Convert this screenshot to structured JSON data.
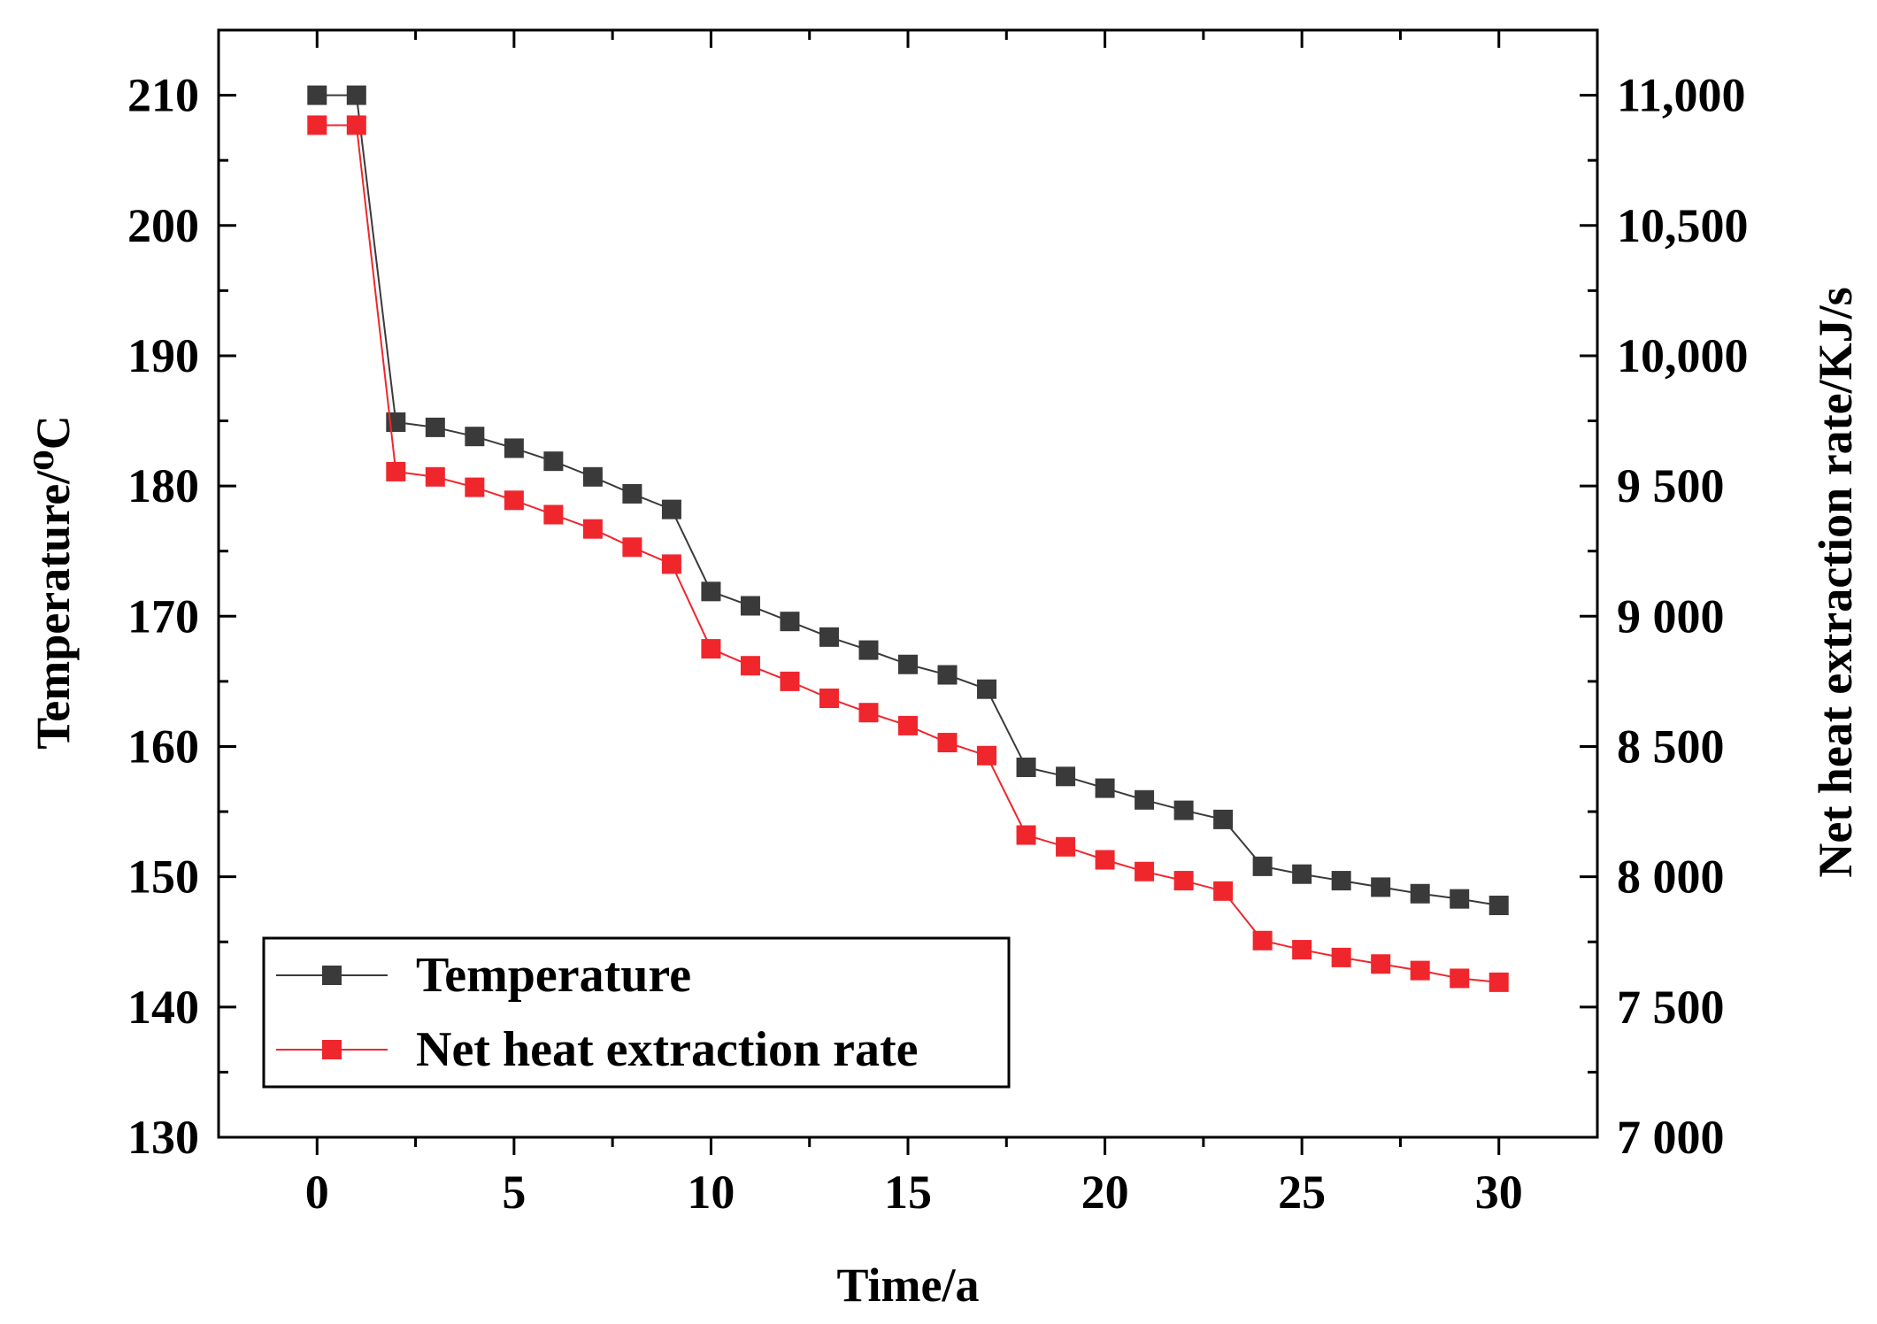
{
  "chart_data": {
    "type": "line",
    "title": "",
    "xlabel": "Time/a",
    "ylabel_left": "Temperature/⁰C",
    "ylabel_right": "Net heat extraction rate/KJ/s",
    "xlim": [
      -2.5,
      32.5
    ],
    "ylim_left": [
      130,
      215
    ],
    "ylim_right": [
      7000,
      11250
    ],
    "x_ticks": [
      0,
      5,
      10,
      15,
      20,
      25,
      30
    ],
    "x_tick_labels": [
      "0",
      "5",
      "10",
      "15",
      "20",
      "25",
      "30"
    ],
    "y_left_ticks": [
      130,
      140,
      150,
      160,
      170,
      180,
      190,
      200,
      210
    ],
    "y_left_tick_labels": [
      "130",
      "140",
      "150",
      "160",
      "170",
      "180",
      "190",
      "200",
      "210"
    ],
    "y_right_ticks": [
      7000,
      7500,
      8000,
      8500,
      9000,
      9500,
      10000,
      10500,
      11000
    ],
    "y_right_tick_labels": [
      "7 000",
      "7 500",
      "8 000",
      "8 500",
      "9 000",
      "9 500",
      "10,000",
      "10,500",
      "11,000"
    ],
    "grid": false,
    "legend_position": "bottom-left",
    "series": [
      {
        "name": "Temperature",
        "axis": "left",
        "color": "#3a3a3a",
        "x": [
          0,
          1,
          2,
          3,
          4,
          5,
          6,
          7,
          8,
          9,
          10,
          11,
          12,
          13,
          14,
          15,
          16,
          17,
          18,
          19,
          20,
          21,
          22,
          23,
          24,
          25,
          26,
          27,
          28,
          29,
          30
        ],
        "values": [
          210,
          210,
          184.9,
          184.5,
          183.8,
          182.9,
          181.9,
          180.7,
          179.4,
          178.2,
          171.9,
          170.8,
          169.6,
          168.4,
          167.4,
          166.3,
          165.5,
          164.4,
          158.4,
          157.7,
          156.8,
          155.9,
          155.1,
          154.4,
          150.8,
          150.2,
          149.7,
          149.2,
          148.7,
          148.3,
          147.8
        ]
      },
      {
        "name": "Net heat extraction rate",
        "axis": "right",
        "color": "#f0262d",
        "x": [
          0,
          1,
          2,
          3,
          4,
          5,
          6,
          7,
          8,
          9,
          10,
          11,
          12,
          13,
          14,
          15,
          16,
          17,
          18,
          19,
          20,
          21,
          22,
          23,
          24,
          25,
          26,
          27,
          28,
          29,
          30
        ],
        "values": [
          10885,
          10885,
          9555,
          9535,
          9495,
          9445,
          9390,
          9335,
          9265,
          9200,
          8875,
          8810,
          8750,
          8685,
          8630,
          8580,
          8515,
          8465,
          8160,
          8115,
          8065,
          8020,
          7985,
          7945,
          7755,
          7720,
          7690,
          7665,
          7640,
          7610,
          7595
        ]
      }
    ]
  }
}
